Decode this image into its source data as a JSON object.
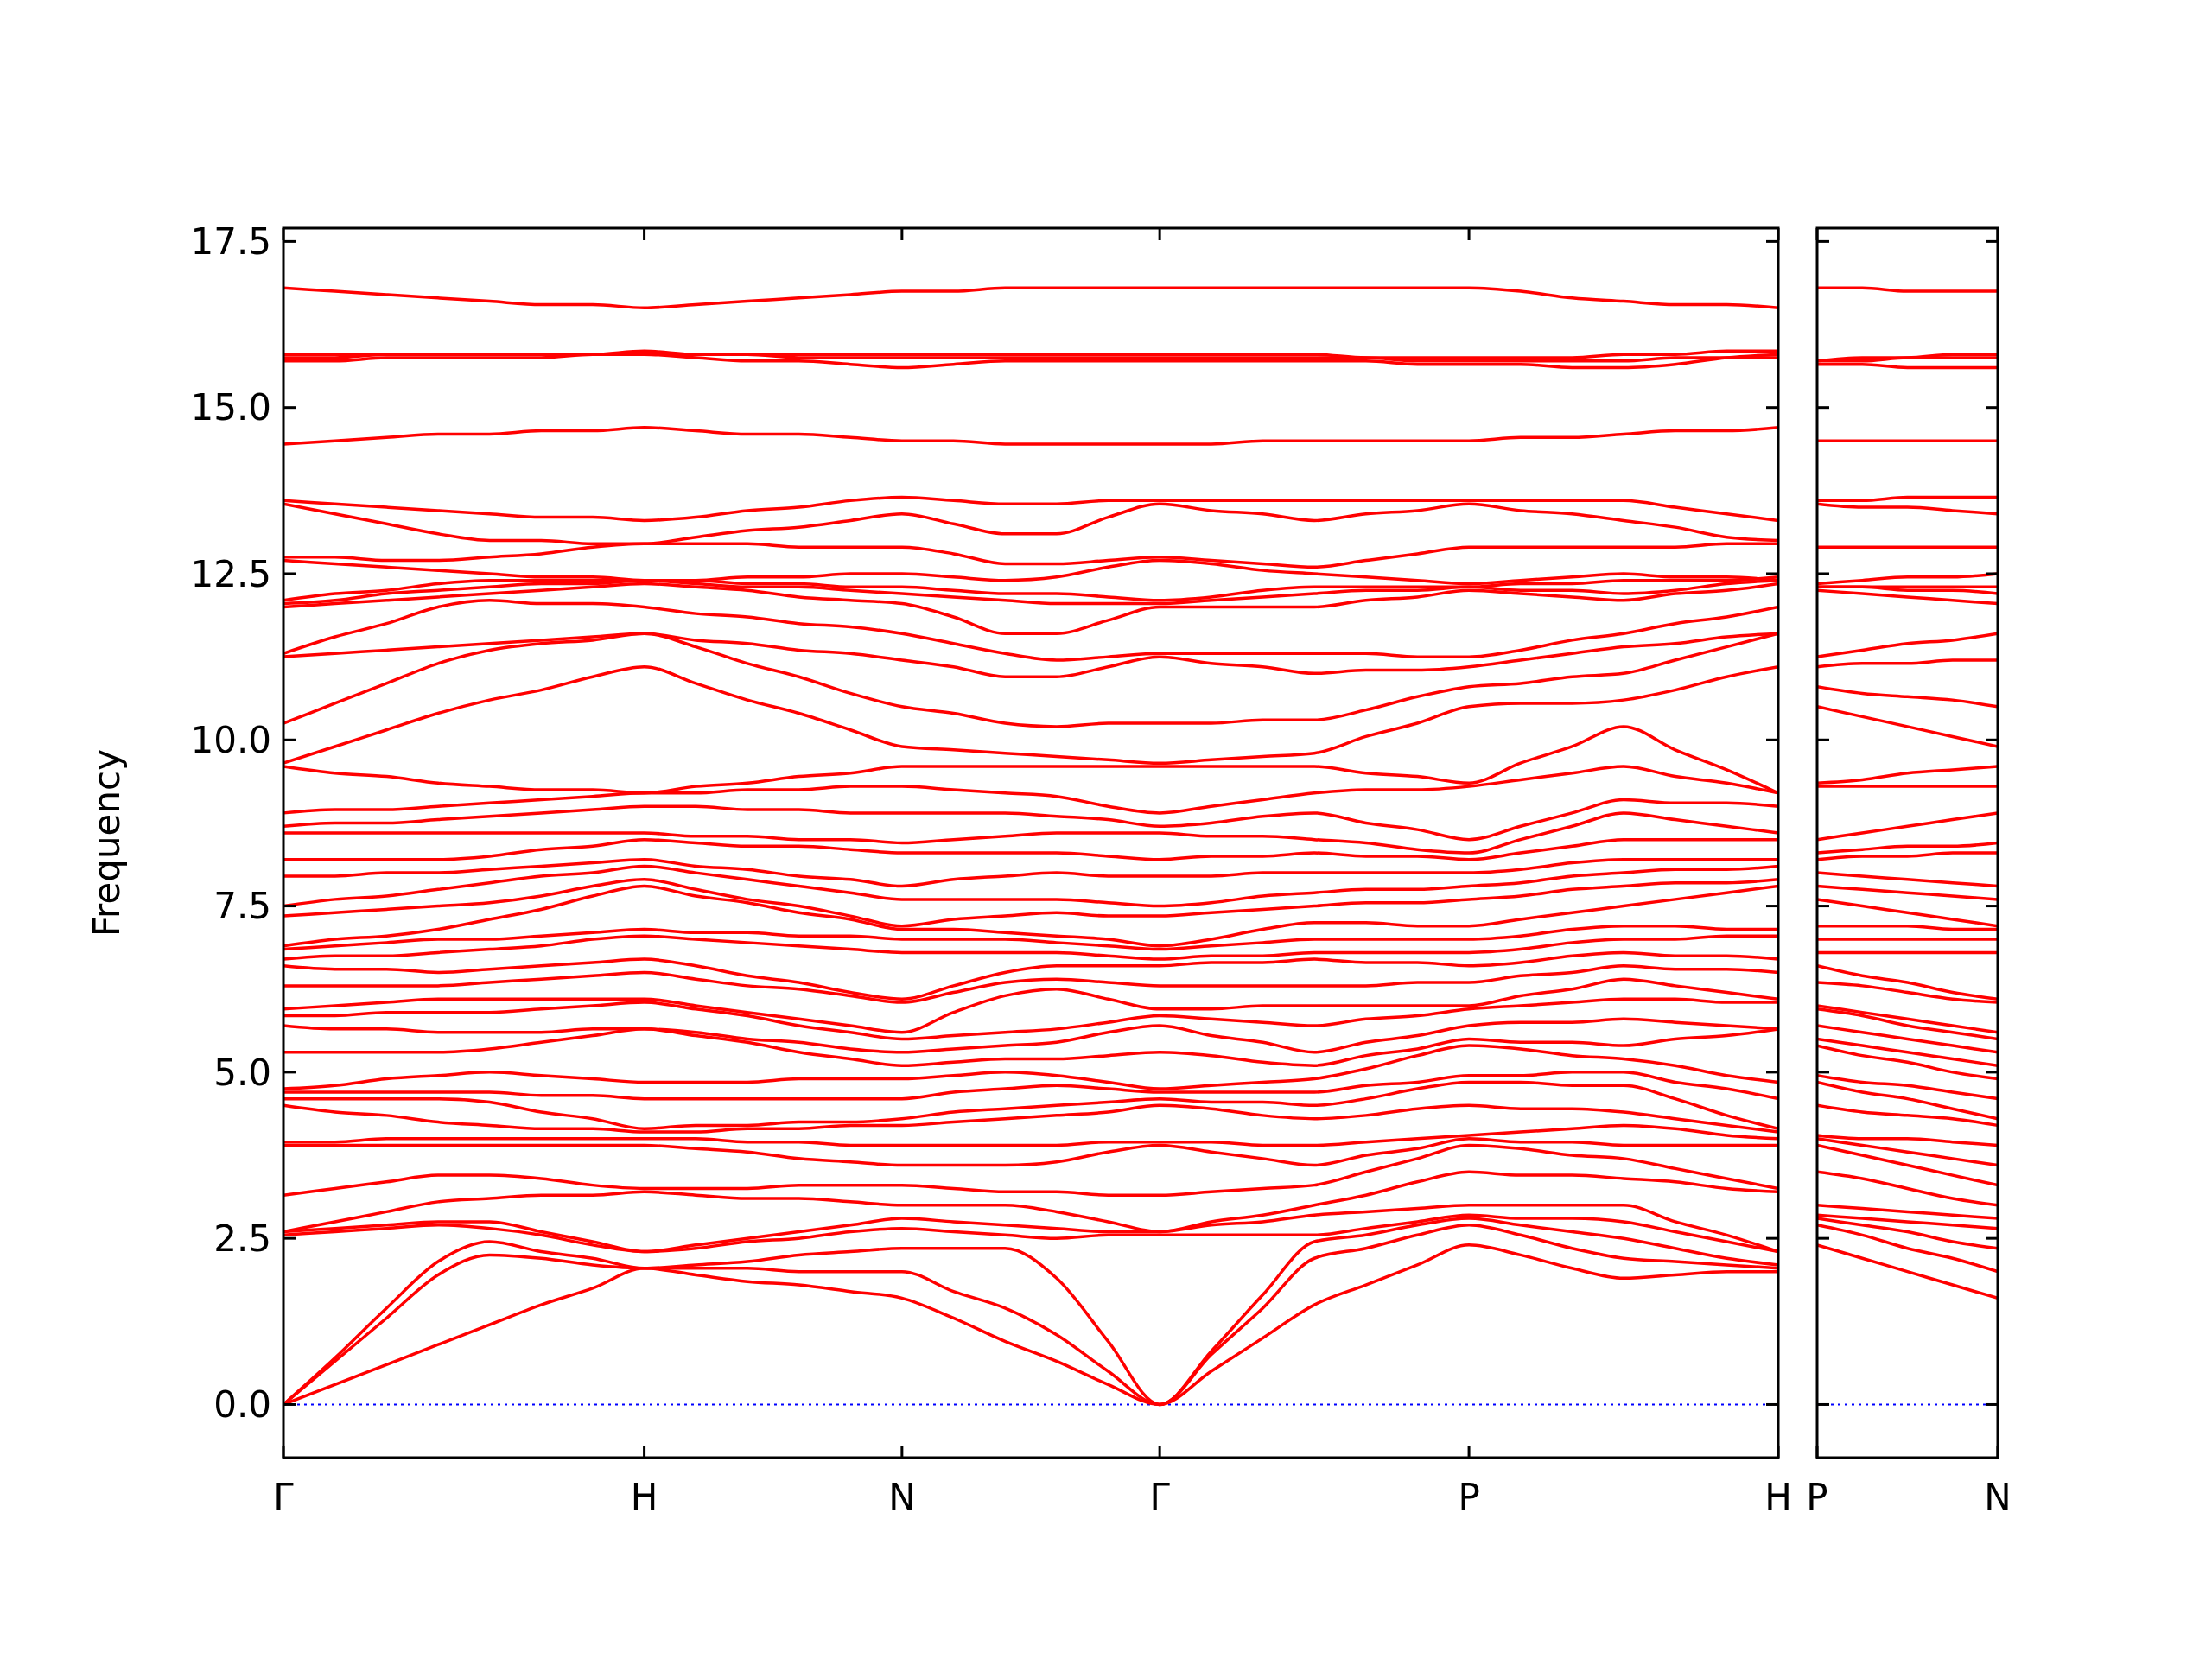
{
  "chart_data": [
    {
      "type": "line",
      "ylabel": "Frequency",
      "categories": [
        "Γ",
        null,
        null,
        null,
        null,
        null,
        null,
        "H",
        null,
        null,
        null,
        null,
        "N",
        null,
        null,
        null,
        null,
        "Γ",
        null,
        null,
        null,
        null,
        null,
        "P",
        null,
        null,
        null,
        null,
        null,
        "H"
      ],
      "ylim": [
        -0.8,
        17.7
      ],
      "yticks": [
        {
          "value": 0,
          "label": "0.0"
        },
        2.5,
        {
          "value": 5,
          "label": "5.0"
        },
        7.5,
        {
          "value": 10,
          "label": "10.0"
        },
        12.5,
        {
          "value": 15,
          "label": "15.0"
        },
        17.5
      ],
      "ref_lines": [
        {
          "axis": "y",
          "value": 0,
          "color": "#0000ff",
          "line_style": "dotted"
        }
      ],
      "series": [
        {
          "color": "#ff0000",
          "values": [
            0,
            0.3,
            0.6,
            0.9,
            1.2,
            1.5,
            1.75,
            2.05,
            1.95,
            1.85,
            1.8,
            1.7,
            1.6,
            1.3,
            0.95,
            0.65,
            0.3,
            0,
            0.5,
            1.0,
            1.5,
            1.8,
            2.1,
            2.4,
            2.25,
            2.05,
            1.9,
            1.95,
            2.0,
            2.0
          ]
        },
        {
          "color": "#ff0000",
          "values": [
            0,
            0.65,
            1.3,
            1.95,
            2.25,
            2.2,
            2.1,
            2.05,
            2.05,
            2.05,
            2.0,
            2.0,
            2.0,
            1.7,
            1.45,
            1.05,
            0.5,
            0,
            0.75,
            1.45,
            2.2,
            2.35,
            2.55,
            2.7,
            2.55,
            2.35,
            2.2,
            2.15,
            2.1,
            2.05
          ]
        },
        {
          "color": "#ff0000",
          "values": [
            0,
            0.7,
            1.45,
            2.15,
            2.45,
            2.3,
            2.2,
            2.05,
            2.1,
            2.15,
            2.25,
            2.3,
            2.35,
            2.35,
            2.35,
            1.9,
            0.95,
            0,
            0.8,
            1.65,
            2.45,
            2.55,
            2.7,
            2.8,
            2.7,
            2.6,
            2.5,
            2.35,
            2.2,
            2.1
          ]
        },
        {
          "color": "#ff0000",
          "values": [
            2.55,
            2.6,
            2.65,
            2.7,
            2.65,
            2.55,
            2.4,
            2.3,
            2.35,
            2.45,
            2.5,
            2.6,
            2.65,
            2.6,
            2.55,
            2.5,
            2.55,
            2.55,
            2.55,
            2.55,
            2.55,
            2.65,
            2.75,
            2.85,
            2.8,
            2.8,
            2.75,
            2.6,
            2.45,
            2.3
          ]
        },
        {
          "color": "#ff0000",
          "values": [
            2.6,
            2.65,
            2.7,
            2.75,
            2.75,
            2.6,
            2.45,
            2.3,
            2.4,
            2.5,
            2.6,
            2.7,
            2.8,
            2.75,
            2.7,
            2.65,
            2.6,
            2.6,
            2.7,
            2.75,
            2.85,
            2.9,
            2.95,
            3.0,
            3.0,
            3.0,
            3.0,
            2.75,
            2.55,
            2.3
          ]
        },
        {
          "color": "#ff0000",
          "values": [
            2.6,
            2.75,
            2.9,
            3.05,
            3.1,
            3.15,
            3.15,
            3.2,
            3.15,
            3.1,
            3.1,
            3.05,
            3.0,
            3.0,
            3.0,
            2.9,
            2.75,
            2.6,
            2.75,
            2.85,
            3.0,
            3.15,
            3.35,
            3.5,
            3.45,
            3.45,
            3.4,
            3.35,
            3.25,
            3.2
          ]
        },
        {
          "color": "#ff0000",
          "values": [
            3.15,
            3.25,
            3.35,
            3.45,
            3.45,
            3.4,
            3.3,
            3.25,
            3.25,
            3.25,
            3.3,
            3.3,
            3.3,
            3.25,
            3.2,
            3.2,
            3.15,
            3.15,
            3.2,
            3.25,
            3.3,
            3.5,
            3.7,
            3.9,
            3.85,
            3.75,
            3.7,
            3.55,
            3.4,
            3.25
          ]
        },
        {
          "color": "#ff0000",
          "values": [
            3.9,
            3.9,
            3.9,
            3.9,
            3.9,
            3.9,
            3.9,
            3.9,
            3.85,
            3.8,
            3.7,
            3.65,
            3.6,
            3.6,
            3.6,
            3.65,
            3.8,
            3.9,
            3.8,
            3.7,
            3.6,
            3.75,
            3.85,
            4.0,
            3.95,
            3.95,
            3.9,
            3.9,
            3.9,
            3.9
          ]
        },
        {
          "color": "#ff0000",
          "values": [
            3.95,
            3.95,
            4.0,
            4.0,
            4.0,
            4.0,
            4.0,
            4.0,
            4.0,
            3.95,
            3.95,
            3.9,
            3.9,
            3.9,
            3.9,
            3.9,
            3.95,
            3.95,
            3.95,
            3.9,
            3.9,
            3.95,
            4.0,
            4.05,
            4.1,
            4.15,
            4.2,
            4.15,
            4.05,
            4.0
          ]
        },
        {
          "color": "#ff0000",
          "values": [
            4.5,
            4.4,
            4.35,
            4.25,
            4.2,
            4.15,
            4.15,
            4.1,
            4.1,
            4.15,
            4.15,
            4.2,
            4.2,
            4.25,
            4.3,
            4.35,
            4.4,
            4.5,
            4.45,
            4.35,
            4.3,
            4.35,
            4.45,
            4.5,
            4.45,
            4.45,
            4.4,
            4.3,
            4.2,
            4.1
          ]
        },
        {
          "color": "#ff0000",
          "values": [
            4.6,
            4.6,
            4.6,
            4.6,
            4.55,
            4.4,
            4.3,
            4.15,
            4.2,
            4.2,
            4.25,
            4.25,
            4.3,
            4.4,
            4.45,
            4.5,
            4.55,
            4.6,
            4.55,
            4.55,
            4.5,
            4.6,
            4.75,
            4.85,
            4.85,
            4.8,
            4.8,
            4.6,
            4.35,
            4.15
          ]
        },
        {
          "color": "#ff0000",
          "values": [
            4.7,
            4.7,
            4.7,
            4.7,
            4.7,
            4.65,
            4.65,
            4.6,
            4.6,
            4.6,
            4.6,
            4.6,
            4.6,
            4.7,
            4.75,
            4.8,
            4.75,
            4.7,
            4.7,
            4.7,
            4.7,
            4.8,
            4.85,
            4.95,
            4.95,
            5.0,
            5.0,
            4.85,
            4.75,
            4.6
          ]
        },
        {
          "color": "#ff0000",
          "values": [
            4.75,
            4.8,
            4.9,
            4.95,
            5.0,
            4.95,
            4.9,
            4.85,
            4.85,
            4.85,
            4.9,
            4.9,
            4.9,
            4.95,
            5.0,
            4.95,
            4.85,
            4.75,
            4.8,
            4.85,
            4.9,
            5.05,
            5.25,
            5.4,
            5.35,
            5.25,
            5.2,
            5.1,
            4.95,
            4.85
          ]
        },
        {
          "color": "#ff0000",
          "values": [
            5.3,
            5.3,
            5.3,
            5.3,
            5.35,
            5.45,
            5.55,
            5.65,
            5.55,
            5.45,
            5.3,
            5.2,
            5.1,
            5.15,
            5.2,
            5.2,
            5.25,
            5.3,
            5.25,
            5.15,
            5.1,
            5.25,
            5.35,
            5.5,
            5.45,
            5.45,
            5.4,
            5.5,
            5.55,
            5.65
          ]
        },
        {
          "color": "#ff0000",
          "values": [
            5.7,
            5.65,
            5.65,
            5.6,
            5.6,
            5.6,
            5.65,
            5.65,
            5.6,
            5.5,
            5.45,
            5.35,
            5.3,
            5.35,
            5.4,
            5.45,
            5.6,
            5.7,
            5.55,
            5.45,
            5.3,
            5.45,
            5.55,
            5.7,
            5.75,
            5.75,
            5.8,
            5.75,
            5.7,
            5.65
          ]
        },
        {
          "color": "#ff0000",
          "values": [
            5.85,
            5.85,
            5.9,
            5.9,
            5.9,
            5.95,
            6.0,
            6.05,
            5.95,
            5.85,
            5.7,
            5.6,
            5.5,
            5.55,
            5.6,
            5.65,
            5.75,
            5.85,
            5.8,
            5.75,
            5.7,
            5.8,
            5.85,
            5.95,
            6.0,
            6.05,
            6.1,
            6.1,
            6.05,
            6.05
          ]
        },
        {
          "color": "#ff0000",
          "values": [
            5.95,
            6.0,
            6.05,
            6.1,
            6.1,
            6.1,
            6.1,
            6.1,
            6.0,
            5.9,
            5.8,
            5.7,
            5.6,
            5.9,
            6.15,
            6.25,
            6.1,
            5.95,
            5.95,
            6.0,
            6.0,
            6.0,
            6.0,
            6.0,
            6.15,
            6.25,
            6.4,
            6.3,
            6.2,
            6.1
          ]
        },
        {
          "color": "#ff0000",
          "values": [
            6.3,
            6.3,
            6.3,
            6.3,
            6.35,
            6.4,
            6.45,
            6.5,
            6.4,
            6.3,
            6.25,
            6.15,
            6.05,
            6.2,
            6.35,
            6.4,
            6.35,
            6.3,
            6.3,
            6.3,
            6.3,
            6.3,
            6.35,
            6.35,
            6.45,
            6.5,
            6.6,
            6.55,
            6.55,
            6.5
          ]
        },
        {
          "color": "#ff0000",
          "values": [
            6.6,
            6.55,
            6.55,
            6.5,
            6.55,
            6.6,
            6.65,
            6.7,
            6.6,
            6.45,
            6.35,
            6.2,
            6.1,
            6.3,
            6.5,
            6.6,
            6.6,
            6.6,
            6.65,
            6.65,
            6.7,
            6.65,
            6.65,
            6.6,
            6.65,
            6.75,
            6.8,
            6.75,
            6.75,
            6.7
          ]
        },
        {
          "color": "#ff0000",
          "values": [
            6.7,
            6.75,
            6.75,
            6.8,
            6.85,
            6.9,
            7.0,
            7.05,
            7.0,
            6.95,
            6.9,
            6.85,
            6.8,
            6.8,
            6.8,
            6.8,
            6.75,
            6.7,
            6.75,
            6.75,
            6.8,
            6.8,
            6.8,
            6.8,
            6.85,
            6.95,
            7.0,
            7.0,
            7.05,
            7.05
          ]
        },
        {
          "color": "#ff0000",
          "values": [
            6.85,
            6.9,
            6.95,
            7.0,
            7.0,
            7.05,
            7.1,
            7.15,
            7.1,
            7.1,
            7.05,
            7.05,
            7.0,
            7.0,
            7.0,
            6.95,
            6.9,
            6.85,
            6.9,
            6.95,
            7.0,
            7.0,
            7.0,
            7.0,
            7.05,
            7.15,
            7.2,
            7.2,
            7.15,
            7.15
          ]
        },
        {
          "color": "#ff0000",
          "values": [
            6.9,
            7.0,
            7.05,
            7.15,
            7.3,
            7.45,
            7.65,
            7.8,
            7.65,
            7.55,
            7.4,
            7.3,
            7.15,
            7.15,
            7.1,
            7.05,
            7.0,
            6.9,
            7.0,
            7.15,
            7.25,
            7.25,
            7.2,
            7.2,
            7.3,
            7.4,
            7.5,
            7.6,
            7.7,
            7.8
          ]
        },
        {
          "color": "#ff0000",
          "values": [
            7.35,
            7.4,
            7.45,
            7.5,
            7.55,
            7.65,
            7.8,
            7.9,
            7.75,
            7.6,
            7.5,
            7.35,
            7.2,
            7.3,
            7.35,
            7.4,
            7.35,
            7.35,
            7.4,
            7.45,
            7.5,
            7.55,
            7.55,
            7.6,
            7.65,
            7.75,
            7.8,
            7.85,
            7.85,
            7.9
          ]
        },
        {
          "color": "#ff0000",
          "values": [
            7.5,
            7.6,
            7.65,
            7.75,
            7.85,
            7.95,
            8.0,
            8.1,
            8.0,
            7.9,
            7.8,
            7.7,
            7.6,
            7.6,
            7.6,
            7.6,
            7.55,
            7.5,
            7.55,
            7.65,
            7.7,
            7.75,
            7.75,
            7.8,
            7.85,
            7.95,
            8.0,
            8.05,
            8.05,
            8.1
          ]
        },
        {
          "color": "#ff0000",
          "values": [
            7.95,
            7.95,
            8.0,
            8.0,
            8.05,
            8.1,
            8.15,
            8.2,
            8.1,
            8.05,
            7.95,
            7.9,
            7.8,
            7.9,
            7.95,
            8.0,
            7.95,
            7.95,
            7.95,
            8.0,
            8.0,
            8.0,
            8.0,
            8.0,
            8.05,
            8.15,
            8.2,
            8.2,
            8.2,
            8.2
          ]
        },
        {
          "color": "#ff0000",
          "values": [
            8.2,
            8.2,
            8.2,
            8.2,
            8.25,
            8.35,
            8.4,
            8.5,
            8.45,
            8.4,
            8.4,
            8.35,
            8.3,
            8.3,
            8.3,
            8.3,
            8.25,
            8.2,
            8.25,
            8.25,
            8.3,
            8.25,
            8.25,
            8.2,
            8.3,
            8.4,
            8.5,
            8.5,
            8.5,
            8.5
          ]
        },
        {
          "color": "#ff0000",
          "values": [
            8.6,
            8.6,
            8.6,
            8.6,
            8.6,
            8.6,
            8.6,
            8.6,
            8.55,
            8.55,
            8.5,
            8.5,
            8.45,
            8.5,
            8.55,
            8.6,
            8.6,
            8.6,
            8.55,
            8.55,
            8.5,
            8.45,
            8.35,
            8.3,
            8.5,
            8.7,
            8.9,
            8.8,
            8.7,
            8.6
          ]
        },
        {
          "color": "#ff0000",
          "values": [
            8.7,
            8.75,
            8.75,
            8.8,
            8.85,
            8.9,
            8.95,
            9.0,
            9.0,
            8.95,
            8.95,
            8.9,
            8.9,
            8.9,
            8.9,
            8.85,
            8.8,
            8.7,
            8.75,
            8.85,
            8.9,
            8.75,
            8.65,
            8.5,
            8.7,
            8.9,
            9.1,
            9.05,
            9.05,
            9.0
          ]
        },
        {
          "color": "#ff0000",
          "values": [
            8.9,
            8.95,
            8.95,
            9.0,
            9.05,
            9.1,
            9.15,
            9.2,
            9.2,
            9.25,
            9.25,
            9.3,
            9.3,
            9.25,
            9.2,
            9.15,
            9.0,
            8.9,
            9.0,
            9.1,
            9.2,
            9.25,
            9.25,
            9.3,
            9.4,
            9.5,
            9.6,
            9.45,
            9.35,
            9.2
          ]
        },
        {
          "color": "#ff0000",
          "values": [
            9.6,
            9.5,
            9.45,
            9.35,
            9.3,
            9.25,
            9.25,
            9.2,
            9.3,
            9.35,
            9.45,
            9.5,
            9.6,
            9.6,
            9.6,
            9.6,
            9.6,
            9.6,
            9.6,
            9.6,
            9.6,
            9.5,
            9.45,
            9.35,
            9.65,
            9.9,
            10.2,
            9.85,
            9.55,
            9.2
          ]
        },
        {
          "color": "#ff0000",
          "values": [
            9.65,
            9.9,
            10.15,
            10.4,
            10.6,
            10.75,
            10.95,
            11.1,
            10.85,
            10.6,
            10.4,
            10.15,
            9.9,
            9.85,
            9.8,
            9.75,
            9.7,
            9.65,
            9.7,
            9.75,
            9.8,
            10.05,
            10.25,
            10.5,
            10.55,
            10.55,
            10.6,
            10.75,
            10.95,
            11.1
          ]
        },
        {
          "color": "#ff0000",
          "values": [
            10.25,
            10.55,
            10.85,
            11.15,
            11.35,
            11.45,
            11.5,
            11.6,
            11.4,
            11.15,
            10.95,
            10.7,
            10.5,
            10.4,
            10.25,
            10.2,
            10.25,
            10.25,
            10.25,
            10.3,
            10.3,
            10.45,
            10.65,
            10.8,
            10.85,
            10.95,
            11.0,
            11.2,
            11.4,
            11.6
          ]
        },
        {
          "color": "#ff0000",
          "values": [
            11.25,
            11.3,
            11.35,
            11.4,
            11.45,
            11.5,
            11.55,
            11.6,
            11.5,
            11.45,
            11.35,
            11.3,
            11.2,
            11.1,
            10.95,
            10.95,
            11.1,
            11.25,
            11.15,
            11.1,
            11.0,
            11.05,
            11.05,
            11.1,
            11.2,
            11.3,
            11.4,
            11.45,
            11.55,
            11.6
          ]
        },
        {
          "color": "#ff0000",
          "values": [
            11.3,
            11.55,
            11.75,
            12.0,
            12.1,
            12.05,
            12.05,
            12.0,
            11.9,
            11.85,
            11.75,
            11.7,
            11.6,
            11.45,
            11.3,
            11.2,
            11.25,
            11.3,
            11.3,
            11.3,
            11.3,
            11.3,
            11.25,
            11.25,
            11.35,
            11.5,
            11.6,
            11.75,
            11.85,
            12.0
          ]
        },
        {
          "color": "#ff0000",
          "values": [
            12.0,
            12.05,
            12.1,
            12.15,
            12.2,
            12.25,
            12.3,
            12.35,
            12.3,
            12.25,
            12.15,
            12.1,
            12.05,
            11.85,
            11.6,
            11.6,
            11.8,
            12.0,
            12.0,
            12.0,
            12.0,
            12.1,
            12.15,
            12.25,
            12.2,
            12.15,
            12.1,
            12.2,
            12.25,
            12.35
          ]
        },
        {
          "color": "#ff0000",
          "values": [
            12.05,
            12.1,
            12.2,
            12.25,
            12.3,
            12.35,
            12.35,
            12.4,
            12.35,
            12.3,
            12.3,
            12.25,
            12.2,
            12.15,
            12.1,
            12.05,
            12.05,
            12.05,
            12.1,
            12.15,
            12.2,
            12.25,
            12.25,
            12.3,
            12.25,
            12.25,
            12.2,
            12.25,
            12.35,
            12.4
          ]
        },
        {
          "color": "#ff0000",
          "values": [
            12.1,
            12.2,
            12.25,
            12.35,
            12.4,
            12.4,
            12.4,
            12.4,
            12.4,
            12.35,
            12.35,
            12.3,
            12.3,
            12.25,
            12.2,
            12.2,
            12.15,
            12.1,
            12.15,
            12.25,
            12.3,
            12.3,
            12.3,
            12.3,
            12.35,
            12.35,
            12.4,
            12.4,
            12.4,
            12.45
          ]
        },
        {
          "color": "#ff0000",
          "values": [
            12.7,
            12.65,
            12.6,
            12.55,
            12.5,
            12.45,
            12.45,
            12.4,
            12.4,
            12.45,
            12.45,
            12.5,
            12.5,
            12.45,
            12.4,
            12.45,
            12.6,
            12.7,
            12.65,
            12.55,
            12.5,
            12.45,
            12.4,
            12.35,
            12.4,
            12.45,
            12.5,
            12.45,
            12.45,
            12.4
          ]
        },
        {
          "color": "#ff0000",
          "values": [
            12.75,
            12.75,
            12.7,
            12.7,
            12.75,
            12.8,
            12.9,
            12.95,
            12.95,
            12.95,
            12.9,
            12.9,
            12.9,
            12.8,
            12.65,
            12.65,
            12.7,
            12.75,
            12.7,
            12.65,
            12.6,
            12.7,
            12.8,
            12.9,
            12.9,
            12.9,
            12.9,
            12.9,
            12.95,
            12.95
          ]
        },
        {
          "color": "#ff0000",
          "values": [
            13.55,
            13.4,
            13.25,
            13.1,
            13.0,
            13.0,
            12.95,
            12.95,
            13.05,
            13.15,
            13.2,
            13.3,
            13.4,
            13.25,
            13.1,
            13.1,
            13.35,
            13.55,
            13.45,
            13.4,
            13.3,
            13.4,
            13.45,
            13.55,
            13.45,
            13.4,
            13.3,
            13.2,
            13.05,
            13.0
          ]
        },
        {
          "color": "#ff0000",
          "values": [
            13.6,
            13.55,
            13.5,
            13.45,
            13.4,
            13.35,
            13.35,
            13.3,
            13.35,
            13.45,
            13.5,
            13.6,
            13.65,
            13.6,
            13.55,
            13.55,
            13.6,
            13.6,
            13.6,
            13.6,
            13.6,
            13.6,
            13.6,
            13.6,
            13.6,
            13.6,
            13.6,
            13.5,
            13.4,
            13.3
          ]
        },
        {
          "color": "#ff0000",
          "values": [
            14.45,
            14.5,
            14.55,
            14.6,
            14.6,
            14.65,
            14.65,
            14.7,
            14.65,
            14.6,
            14.6,
            14.55,
            14.5,
            14.5,
            14.45,
            14.45,
            14.45,
            14.45,
            14.45,
            14.5,
            14.5,
            14.5,
            14.5,
            14.5,
            14.55,
            14.55,
            14.6,
            14.65,
            14.65,
            14.7
          ]
        },
        {
          "color": "#ff0000",
          "values": [
            15.7,
            15.7,
            15.75,
            15.75,
            15.75,
            15.75,
            15.8,
            15.8,
            15.75,
            15.7,
            15.7,
            15.65,
            15.6,
            15.65,
            15.7,
            15.7,
            15.7,
            15.7,
            15.7,
            15.7,
            15.7,
            15.7,
            15.65,
            15.65,
            15.65,
            15.6,
            15.6,
            15.65,
            15.75,
            15.8
          ]
        },
        {
          "color": "#ff0000",
          "values": [
            15.75,
            15.75,
            15.8,
            15.8,
            15.8,
            15.8,
            15.8,
            15.8,
            15.8,
            15.8,
            15.75,
            15.75,
            15.75,
            15.75,
            15.75,
            15.75,
            15.75,
            15.75,
            15.75,
            15.75,
            15.75,
            15.75,
            15.7,
            15.7,
            15.7,
            15.7,
            15.7,
            15.75,
            15.75,
            15.75
          ]
        },
        {
          "color": "#ff0000",
          "values": [
            15.8,
            15.8,
            15.8,
            15.8,
            15.8,
            15.8,
            15.8,
            15.85,
            15.8,
            15.8,
            15.8,
            15.8,
            15.8,
            15.8,
            15.8,
            15.8,
            15.8,
            15.8,
            15.8,
            15.8,
            15.8,
            15.75,
            15.75,
            15.75,
            15.75,
            15.75,
            15.8,
            15.8,
            15.85,
            15.85
          ]
        },
        {
          "color": "#ff0000",
          "values": [
            16.8,
            16.75,
            16.7,
            16.65,
            16.6,
            16.55,
            16.55,
            16.5,
            16.55,
            16.6,
            16.65,
            16.7,
            16.75,
            16.75,
            16.8,
            16.8,
            16.8,
            16.8,
            16.8,
            16.8,
            16.8,
            16.8,
            16.8,
            16.8,
            16.75,
            16.65,
            16.6,
            16.55,
            16.55,
            16.5
          ]
        }
      ]
    },
    {
      "type": "line",
      "categories": [
        "P",
        null,
        null,
        null,
        "N"
      ],
      "ylim": [
        -0.8,
        17.7
      ],
      "yticks": [
        {
          "value": 0,
          "label": null
        },
        {
          "value": 2.5,
          "label": null
        },
        {
          "value": 5,
          "label": null
        },
        {
          "value": 7.5,
          "label": null
        },
        {
          "value": 10,
          "label": null
        },
        {
          "value": 12.5,
          "label": null
        },
        {
          "value": 15,
          "label": null
        },
        {
          "value": 17.5,
          "label": null
        }
      ],
      "tick_labels": "x",
      "ref_lines": [
        {
          "axis": "y",
          "value": 0,
          "color": "#0000ff",
          "line_style": "dotted"
        }
      ],
      "series": [
        {
          "color": "#ff0000",
          "values": [
            2.4,
            2.2,
            2.0,
            1.8,
            1.6
          ]
        },
        {
          "color": "#ff0000",
          "values": [
            2.7,
            2.55,
            2.35,
            2.2,
            2.0
          ]
        },
        {
          "color": "#ff0000",
          "values": [
            2.8,
            2.7,
            2.6,
            2.45,
            2.35
          ]
        },
        {
          "color": "#ff0000",
          "values": [
            2.85,
            2.8,
            2.75,
            2.7,
            2.65
          ]
        },
        {
          "color": "#ff0000",
          "values": [
            3.0,
            2.95,
            2.9,
            2.85,
            2.8
          ]
        },
        {
          "color": "#ff0000",
          "values": [
            3.5,
            3.4,
            3.25,
            3.1,
            3.0
          ]
        },
        {
          "color": "#ff0000",
          "values": [
            3.9,
            3.75,
            3.6,
            3.45,
            3.3
          ]
        },
        {
          "color": "#ff0000",
          "values": [
            4.0,
            3.9,
            3.8,
            3.7,
            3.6
          ]
        },
        {
          "color": "#ff0000",
          "values": [
            4.05,
            4.0,
            4.0,
            3.95,
            3.9
          ]
        },
        {
          "color": "#ff0000",
          "values": [
            4.5,
            4.4,
            4.35,
            4.3,
            4.2
          ]
        },
        {
          "color": "#ff0000",
          "values": [
            4.85,
            4.7,
            4.6,
            4.45,
            4.3
          ]
        },
        {
          "color": "#ff0000",
          "values": [
            4.95,
            4.85,
            4.8,
            4.7,
            4.6
          ]
        },
        {
          "color": "#ff0000",
          "values": [
            5.4,
            5.25,
            5.15,
            5.0,
            4.9
          ]
        },
        {
          "color": "#ff0000",
          "values": [
            5.5,
            5.4,
            5.3,
            5.2,
            5.1
          ]
        },
        {
          "color": "#ff0000",
          "values": [
            5.7,
            5.6,
            5.5,
            5.4,
            5.3
          ]
        },
        {
          "color": "#ff0000",
          "values": [
            5.95,
            5.85,
            5.7,
            5.6,
            5.5
          ]
        },
        {
          "color": "#ff0000",
          "values": [
            6.0,
            5.9,
            5.8,
            5.7,
            5.6
          ]
        },
        {
          "color": "#ff0000",
          "values": [
            6.35,
            6.3,
            6.2,
            6.1,
            6.05
          ]
        },
        {
          "color": "#ff0000",
          "values": [
            6.6,
            6.45,
            6.35,
            6.2,
            6.1
          ]
        },
        {
          "color": "#ff0000",
          "values": [
            6.8,
            6.8,
            6.8,
            6.8,
            6.8
          ]
        },
        {
          "color": "#ff0000",
          "values": [
            7.0,
            7.0,
            7.0,
            7.0,
            7.0
          ]
        },
        {
          "color": "#ff0000",
          "values": [
            7.2,
            7.2,
            7.2,
            7.15,
            7.15
          ]
        },
        {
          "color": "#ff0000",
          "values": [
            7.6,
            7.5,
            7.4,
            7.3,
            7.2
          ]
        },
        {
          "color": "#ff0000",
          "values": [
            7.8,
            7.75,
            7.7,
            7.65,
            7.6
          ]
        },
        {
          "color": "#ff0000",
          "values": [
            8.0,
            7.95,
            7.9,
            7.85,
            7.8
          ]
        },
        {
          "color": "#ff0000",
          "values": [
            8.2,
            8.25,
            8.25,
            8.3,
            8.3
          ]
        },
        {
          "color": "#ff0000",
          "values": [
            8.3,
            8.35,
            8.4,
            8.4,
            8.45
          ]
        },
        {
          "color": "#ff0000",
          "values": [
            8.5,
            8.6,
            8.7,
            8.8,
            8.9
          ]
        },
        {
          "color": "#ff0000",
          "values": [
            9.3,
            9.3,
            9.3,
            9.3,
            9.3
          ]
        },
        {
          "color": "#ff0000",
          "values": [
            9.35,
            9.4,
            9.5,
            9.55,
            9.6
          ]
        },
        {
          "color": "#ff0000",
          "values": [
            10.5,
            10.35,
            10.2,
            10.05,
            9.9
          ]
        },
        {
          "color": "#ff0000",
          "values": [
            10.8,
            10.7,
            10.65,
            10.6,
            10.5
          ]
        },
        {
          "color": "#ff0000",
          "values": [
            11.1,
            11.15,
            11.15,
            11.2,
            11.2
          ]
        },
        {
          "color": "#ff0000",
          "values": [
            11.25,
            11.35,
            11.45,
            11.5,
            11.6
          ]
        },
        {
          "color": "#ff0000",
          "values": [
            12.25,
            12.2,
            12.15,
            12.1,
            12.05
          ]
        },
        {
          "color": "#ff0000",
          "values": [
            12.3,
            12.3,
            12.25,
            12.25,
            12.2
          ]
        },
        {
          "color": "#ff0000",
          "values": [
            12.3,
            12.3,
            12.3,
            12.3,
            12.3
          ]
        },
        {
          "color": "#ff0000",
          "values": [
            12.35,
            12.4,
            12.45,
            12.45,
            12.5
          ]
        },
        {
          "color": "#ff0000",
          "values": [
            12.9,
            12.9,
            12.9,
            12.9,
            12.9
          ]
        },
        {
          "color": "#ff0000",
          "values": [
            13.55,
            13.5,
            13.5,
            13.45,
            13.4
          ]
        },
        {
          "color": "#ff0000",
          "values": [
            13.6,
            13.6,
            13.65,
            13.65,
            13.65
          ]
        },
        {
          "color": "#ff0000",
          "values": [
            14.5,
            14.5,
            14.5,
            14.5,
            14.5
          ]
        },
        {
          "color": "#ff0000",
          "values": [
            15.65,
            15.65,
            15.6,
            15.6,
            15.6
          ]
        },
        {
          "color": "#ff0000",
          "values": [
            15.7,
            15.7,
            15.75,
            15.75,
            15.75
          ]
        },
        {
          "color": "#ff0000",
          "values": [
            15.7,
            15.75,
            15.75,
            15.8,
            15.8
          ]
        },
        {
          "color": "#ff0000",
          "values": [
            16.8,
            16.8,
            16.75,
            16.75,
            16.75
          ]
        }
      ]
    }
  ]
}
